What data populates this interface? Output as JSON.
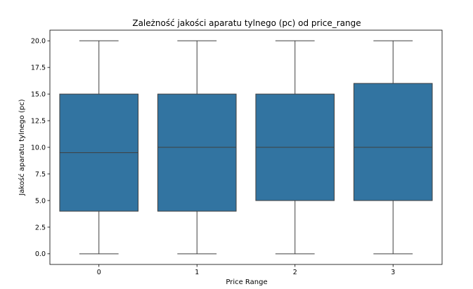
{
  "chart_data": {
    "type": "box",
    "title": "Zależność jakości aparatu tylnego (pc) od price_range",
    "xlabel": "Price Range",
    "ylabel": "Jakość aparatu tylnego (pc)",
    "categories": [
      "0",
      "1",
      "2",
      "3"
    ],
    "ylim": [
      -1.0,
      21.0
    ],
    "yticks": [
      0.0,
      2.5,
      5.0,
      7.5,
      10.0,
      12.5,
      15.0,
      17.5,
      20.0
    ],
    "ytick_labels": [
      "0.0",
      "2.5",
      "5.0",
      "7.5",
      "10.0",
      "12.5",
      "15.0",
      "17.5",
      "20.0"
    ],
    "boxes": [
      {
        "category": "0",
        "whisker_low": 0,
        "q1": 4,
        "median": 9.5,
        "q3": 15,
        "whisker_high": 20
      },
      {
        "category": "1",
        "whisker_low": 0,
        "q1": 4,
        "median": 10,
        "q3": 15,
        "whisker_high": 20
      },
      {
        "category": "2",
        "whisker_low": 0,
        "q1": 5,
        "median": 10,
        "q3": 15,
        "whisker_high": 20
      },
      {
        "category": "3",
        "whisker_low": 0,
        "q1": 5,
        "median": 10,
        "q3": 16,
        "whisker_high": 20
      }
    ],
    "colors": {
      "box_fill": "#3274a1",
      "line": "#3f3f3f",
      "axis": "#000000"
    },
    "grid": false,
    "legend": "none"
  }
}
